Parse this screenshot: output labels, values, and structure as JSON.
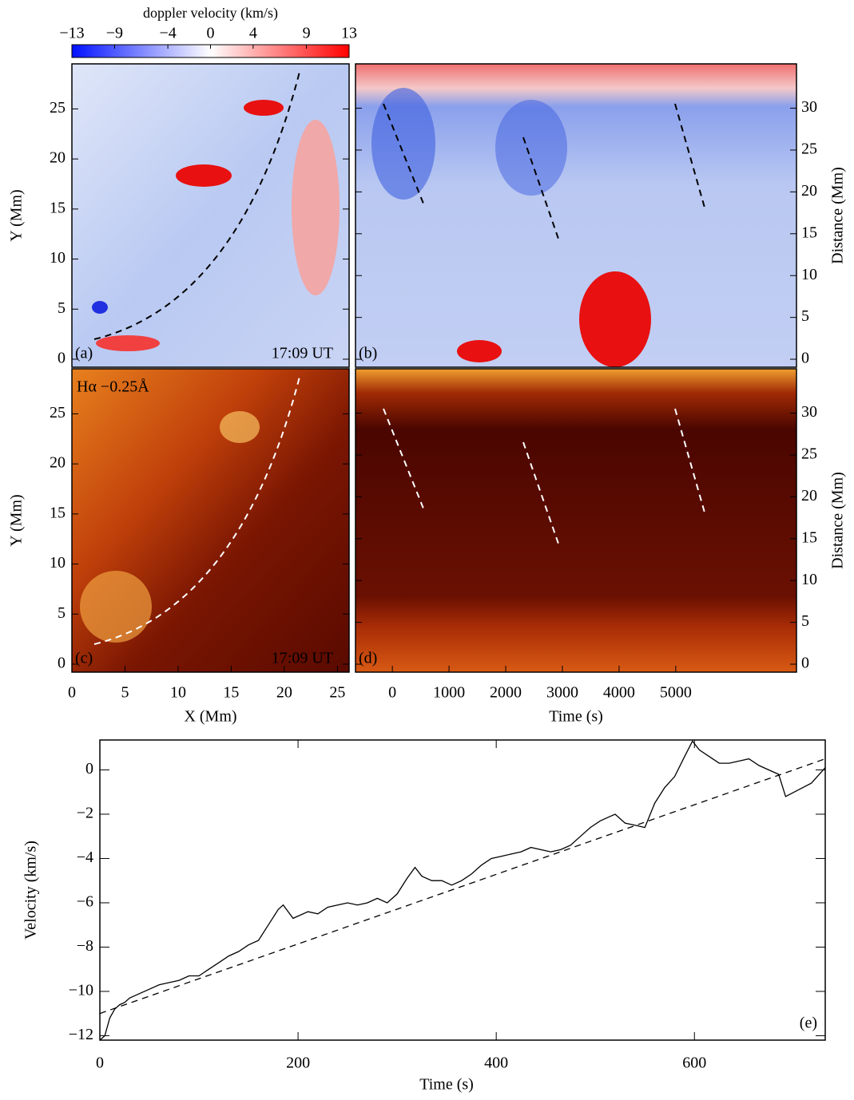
{
  "chart_data": [
    {
      "type": "colorbar",
      "title": "doppler velocity (km/s)",
      "xlim": [
        -13,
        13
      ],
      "xticks": [
        {
          "value": -13,
          "label": "−13"
        },
        {
          "value": -9,
          "label": "−9"
        },
        {
          "value": -4,
          "label": "−4"
        },
        0,
        4,
        9,
        13
      ],
      "colors": [
        "#0010ff",
        "#ffffff",
        "#ff0000"
      ]
    },
    {
      "type": "image",
      "panel": "(a)",
      "annotation": "17:09 UT",
      "ylabel": "Y (Mm)",
      "ylim": [
        -0.8,
        29.5
      ],
      "yticks": [
        0,
        5,
        10,
        15,
        20,
        25
      ]
    },
    {
      "type": "image",
      "panel": "(b)",
      "ylabel": "Distance (Mm)",
      "ylim": [
        -0.95,
        35.3
      ],
      "yticks": [
        0,
        5,
        10,
        15,
        20,
        25,
        30
      ]
    },
    {
      "type": "image",
      "panel": "(c)",
      "annotation": "17:09 UT",
      "title": "Hα  −0.25Å",
      "ylabel": "Y (Mm)",
      "xlabel": "X (Mm)",
      "xlim": [
        0,
        26.1
      ],
      "xticks": [
        0,
        5,
        10,
        15,
        20,
        25
      ],
      "ylim": [
        -0.8,
        29.5
      ],
      "yticks": [
        0,
        5,
        10,
        15,
        20,
        25
      ]
    },
    {
      "type": "image",
      "panel": "(d)",
      "ylabel": "Distance (Mm)",
      "xlabel": "Time (s)",
      "xlim": [
        -650,
        7130
      ],
      "xticks": [
        0,
        1000,
        2000,
        3000,
        4000,
        5000
      ],
      "ylim": [
        -0.95,
        35.3
      ],
      "yticks": [
        0,
        5,
        10,
        15,
        20,
        25,
        30
      ]
    },
    {
      "type": "line",
      "panel": "(e)",
      "xlabel": "Time (s)",
      "ylabel": "Velocity (km/s)",
      "xlim": [
        0,
        732
      ],
      "ylim": [
        -12.2,
        1.35
      ],
      "xticks": [
        0,
        200,
        400,
        600
      ],
      "yticks": [
        {
          "value": -12,
          "label": "−12"
        },
        {
          "value": -10,
          "label": "−10"
        },
        {
          "value": -8,
          "label": "−8"
        },
        {
          "value": -6,
          "label": "−6"
        },
        {
          "value": -4,
          "label": "−4"
        },
        {
          "value": -2,
          "label": "−2"
        },
        0
      ],
      "x": [
        0,
        5,
        10,
        15,
        20,
        25,
        30,
        40,
        50,
        60,
        70,
        80,
        90,
        100,
        110,
        120,
        130,
        140,
        150,
        160,
        170,
        180,
        185,
        190,
        195,
        200,
        210,
        220,
        230,
        240,
        250,
        260,
        270,
        280,
        290,
        300,
        310,
        318,
        325,
        335,
        345,
        355,
        365,
        375,
        385,
        395,
        405,
        415,
        425,
        435,
        445,
        455,
        465,
        475,
        485,
        495,
        505,
        515,
        520,
        530,
        540,
        550,
        560,
        570,
        580,
        590,
        598,
        605,
        615,
        625,
        635,
        645,
        655,
        665,
        675,
        685,
        692,
        705,
        718,
        732
      ],
      "series": [
        {
          "color": "#000000",
          "values": [
            -12.2,
            -12.0,
            -11.2,
            -10.8,
            -10.6,
            -10.5,
            -10.3,
            -10.1,
            -9.9,
            -9.7,
            -9.6,
            -9.5,
            -9.3,
            -9.3,
            -9.0,
            -8.7,
            -8.4,
            -8.2,
            -7.9,
            -7.7,
            -7.0,
            -6.3,
            -6.1,
            -6.4,
            -6.7,
            -6.6,
            -6.4,
            -6.5,
            -6.2,
            -6.1,
            -6.0,
            -6.1,
            -6.0,
            -5.8,
            -6.0,
            -5.6,
            -4.9,
            -4.4,
            -4.8,
            -5.0,
            -5.0,
            -5.2,
            -5.0,
            -4.7,
            -4.3,
            -4.0,
            -3.9,
            -3.8,
            -3.7,
            -3.5,
            -3.6,
            -3.7,
            -3.6,
            -3.4,
            -3.0,
            -2.6,
            -2.3,
            -2.1,
            -2.0,
            -2.4,
            -2.5,
            -2.6,
            -1.5,
            -0.8,
            -0.3,
            0.6,
            1.3,
            0.9,
            0.6,
            0.3,
            0.3,
            0.4,
            0.5,
            0.2,
            0.0,
            -0.2,
            -1.2,
            -0.9,
            -0.6,
            0.1
          ]
        },
        {
          "color": "#000000",
          "dash": true,
          "x": [
            0,
            732
          ],
          "values": [
            -11.0,
            0.5
          ]
        }
      ]
    }
  ]
}
